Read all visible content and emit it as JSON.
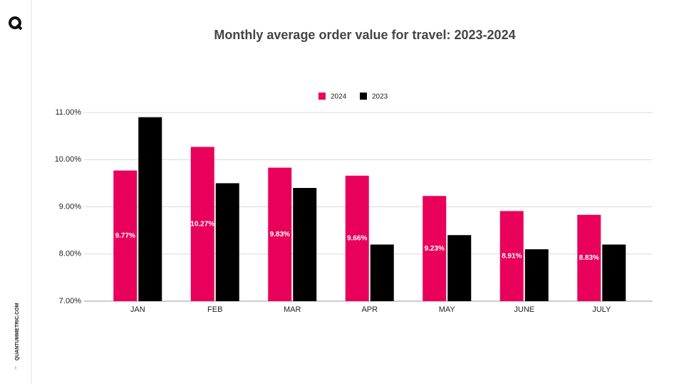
{
  "brand": "QUANTUMMETRIC.COM",
  "page_number": "8",
  "chart_data": {
    "type": "bar",
    "title": "Monthly average order value for travel: 2023-2024",
    "categories": [
      "JAN",
      "FEB",
      "MAR",
      "APR",
      "MAY",
      "JUNE",
      "JULY"
    ],
    "series": [
      {
        "name": "2024",
        "color": "#e8005a",
        "values": [
          9.77,
          10.27,
          9.83,
          9.66,
          9.23,
          8.91,
          8.83
        ],
        "value_labels": [
          "9.77%",
          "10.27%",
          "9.83%",
          "9.66%",
          "9.23%",
          "8.91%",
          "8.83%"
        ]
      },
      {
        "name": "2023",
        "color": "#000000",
        "values": [
          10.9,
          9.5,
          9.4,
          8.2,
          8.4,
          8.1,
          8.2
        ]
      }
    ],
    "ylim": [
      7,
      11
    ],
    "yticks": [
      {
        "value": 7,
        "label": "7.00%"
      },
      {
        "value": 8,
        "label": "8.00%"
      },
      {
        "value": 9,
        "label": "9.00%"
      },
      {
        "value": 10,
        "label": "10.00%"
      },
      {
        "value": 11,
        "label": "11.00%"
      }
    ],
    "grid": true,
    "legend": "top"
  }
}
